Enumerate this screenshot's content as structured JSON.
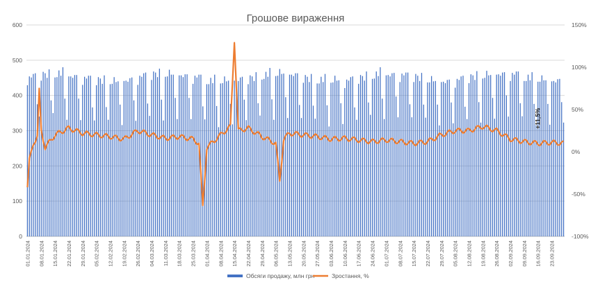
{
  "chart_data": {
    "type": "bar",
    "title": "Грошове вираження",
    "y_left": {
      "min": 0,
      "max": 600,
      "ticks": [
        0,
        100,
        200,
        300,
        400,
        500,
        600
      ]
    },
    "y_right": {
      "min": -100,
      "max": 150,
      "ticks": [
        "-100%",
        "-50%",
        "0%",
        "50%",
        "100%",
        "150%"
      ]
    },
    "grid": "horizontal",
    "legend_position": "bottom",
    "x_tick_labels": [
      "01.01.2024",
      "08.01.2024",
      "15.01.2024",
      "22.01.2024",
      "29.01.2024",
      "05.02.2024",
      "12.02.2024",
      "19.02.2024",
      "26.02.2024",
      "04.03.2024",
      "11.03.2024",
      "18.03.2024",
      "25.03.2024",
      "01.04.2024",
      "08.04.2024",
      "15.04.2024",
      "22.04.2024",
      "29.04.2024",
      "06.05.2024",
      "13.05.2024",
      "20.05.2024",
      "27.05.2024",
      "03.06.2024",
      "10.06.2024",
      "17.06.2024",
      "24.06.2024",
      "01.07.2024",
      "08.07.2024",
      "15.07.2024",
      "22.07.2024",
      "29.07.2024",
      "05.08.2024",
      "12.08.2024",
      "19.08.2024",
      "26.08.2024",
      "02.09.2024",
      "09.09.2024",
      "16.09.2024",
      "23.09.2024"
    ],
    "series": [
      {
        "name": "Обсяги продажу, млн грн",
        "kind": "bar",
        "axis": "left",
        "color": "#4472C4",
        "weekly_pattern": [
          440,
          450,
          455,
          450,
          460,
          380,
          330
        ]
      },
      {
        "name": "Зростання, %",
        "kind": "line",
        "axis": "right",
        "color": "#ED7D31",
        "key_points": [
          [
            "01.01.2024",
            -42
          ],
          [
            "02.01.2024",
            -10
          ],
          [
            "04.01.2024",
            10
          ],
          [
            "06.01.2024",
            18
          ],
          [
            "07.01.2024",
            72
          ],
          [
            "08.01.2024",
            25
          ],
          [
            "10.01.2024",
            5
          ],
          [
            "15.01.2024",
            20
          ],
          [
            "22.01.2024",
            28
          ],
          [
            "29.01.2024",
            22
          ],
          [
            "05.02.2024",
            20
          ],
          [
            "12.02.2024",
            18
          ],
          [
            "19.02.2024",
            15
          ],
          [
            "26.02.2024",
            25
          ],
          [
            "04.03.2024",
            20
          ],
          [
            "11.03.2024",
            16
          ],
          [
            "18.03.2024",
            18
          ],
          [
            "25.03.2024",
            15
          ],
          [
            "28.03.2024",
            10
          ],
          [
            "30.03.2024",
            -65
          ],
          [
            "01.04.2024",
            5
          ],
          [
            "08.04.2024",
            20
          ],
          [
            "13.04.2024",
            30
          ],
          [
            "15.04.2024",
            132
          ],
          [
            "17.04.2024",
            25
          ],
          [
            "22.04.2024",
            28
          ],
          [
            "29.04.2024",
            18
          ],
          [
            "06.05.2024",
            10
          ],
          [
            "08.05.2024",
            -35
          ],
          [
            "10.05.2024",
            15
          ],
          [
            "13.05.2024",
            22
          ],
          [
            "20.05.2024",
            20
          ],
          [
            "27.05.2024",
            18
          ],
          [
            "03.06.2024",
            15
          ],
          [
            "10.06.2024",
            16
          ],
          [
            "17.06.2024",
            14
          ],
          [
            "24.06.2024",
            12
          ],
          [
            "01.07.2024",
            14
          ],
          [
            "08.07.2024",
            12
          ],
          [
            "15.07.2024",
            10
          ],
          [
            "22.07.2024",
            12
          ],
          [
            "29.07.2024",
            20
          ],
          [
            "05.08.2024",
            25
          ],
          [
            "12.08.2024",
            25
          ],
          [
            "19.08.2024",
            30
          ],
          [
            "26.08.2024",
            25
          ],
          [
            "02.09.2024",
            15
          ],
          [
            "09.09.2024",
            12
          ],
          [
            "16.09.2024",
            10
          ],
          [
            "23.09.2024",
            11
          ],
          [
            "29.09.2024",
            10
          ]
        ]
      }
    ],
    "annotations": [
      {
        "text": "+11,5%",
        "at": "16.09.2024"
      }
    ]
  }
}
